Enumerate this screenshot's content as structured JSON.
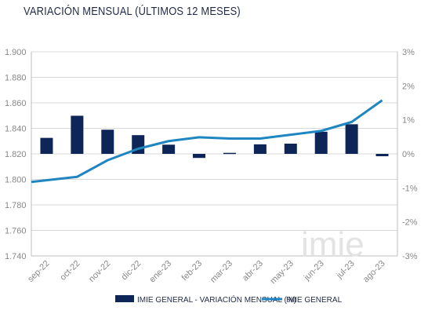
{
  "chart_data": {
    "type": "bar+line",
    "title": "VARIACIÓN MENSUAL (ÚLTIMOS 12 MESES)",
    "categories": [
      "sep-22",
      "oct-22",
      "nov-22",
      "dic-22",
      "ene-23",
      "feb-23",
      "mar-23",
      "abr-23",
      "may-23",
      "jun-23",
      "jul-23",
      "ago-23"
    ],
    "y_left": {
      "ticks": [
        "1.740",
        "1.760",
        "1.780",
        "1.800",
        "1.820",
        "1.840",
        "1.860",
        "1.880",
        "1.900"
      ],
      "ylim": [
        1740,
        1900
      ]
    },
    "y_right": {
      "ticks": [
        "-3%",
        "-2%",
        "-1%",
        "0%",
        "1%",
        "2%",
        "3%"
      ],
      "ylim": [
        -3,
        3
      ]
    },
    "series": [
      {
        "name": "IMIE GENERAL - VARIACIÓN MENSUAL (%)",
        "type": "bar",
        "axis": "right",
        "color": "#0d2557",
        "values": [
          0.47,
          1.12,
          0.71,
          0.55,
          0.27,
          -0.12,
          0.03,
          0.28,
          0.3,
          0.65,
          0.87,
          -0.07
        ]
      },
      {
        "name": "IMIE GENERAL",
        "type": "line",
        "axis": "left",
        "color": "#1f86c1",
        "values": [
          1798,
          1802,
          1815,
          1824,
          1830,
          1833,
          1832,
          1832,
          1835,
          1838,
          1845,
          1862
        ]
      }
    ],
    "legend": {
      "position": "bottom",
      "labels": [
        "IMIE GENERAL - VARIACIÓN MENSUAL (%)",
        "IMIE GENERAL"
      ]
    },
    "grid": true,
    "watermark": "imie"
  }
}
